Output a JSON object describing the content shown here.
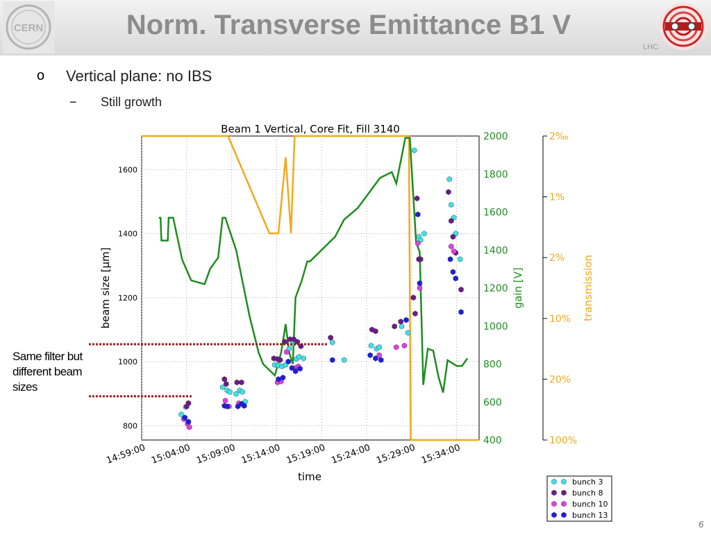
{
  "slide": {
    "title": "Norm. Transverse Emittance B1 V",
    "bullet1_marker": "o",
    "bullet1": "Vertical plane: no IBS",
    "bullet2_marker": "−",
    "bullet2": "Still growth",
    "annotation": "Same filter but different beam sizes",
    "page_number": "6",
    "lhc_label": "LHC",
    "cern_logo_text": "CERN"
  },
  "chart_data": {
    "type": "scatter",
    "title": "Beam 1 Vertical, Core Fit, Fill 3140",
    "xlabel": "time",
    "ylabel": "beam size [μm]",
    "ylim": [
      755,
      1705
    ],
    "y_ticks": [
      800,
      1000,
      1200,
      1400,
      1600
    ],
    "x_ticks": [
      {
        "label": "14:59:00",
        "t": 0
      },
      {
        "label": "15:04:00",
        "t": 5
      },
      {
        "label": "15:09:00",
        "t": 10
      },
      {
        "label": "15:14:00",
        "t": 15
      },
      {
        "label": "15:19:00",
        "t": 20
      },
      {
        "label": "15:24:00",
        "t": 25
      },
      {
        "label": "15:29:00",
        "t": 30
      },
      {
        "label": "15:34:00",
        "t": 35
      }
    ],
    "xlim_minutes": [
      0,
      37.5
    ],
    "gain_axis": {
      "label": "gain [V]",
      "ylim": [
        400,
        2000
      ],
      "ticks": [
        400,
        600,
        800,
        1000,
        1200,
        1400,
        1600,
        1800,
        2000
      ],
      "color": "#1e8c1e"
    },
    "transmission_axis": {
      "label": "transmission",
      "ticks": [
        "2‰",
        "1%",
        "2%",
        "10%",
        "20%",
        "100%"
      ],
      "color": "#f2a81d"
    },
    "gain_series": [
      [
        1.9,
        1570
      ],
      [
        2.1,
        1570
      ],
      [
        2.2,
        1450
      ],
      [
        2.9,
        1450
      ],
      [
        3.0,
        1570
      ],
      [
        3.5,
        1570
      ],
      [
        4.5,
        1350
      ],
      [
        5.5,
        1240
      ],
      [
        7.0,
        1220
      ],
      [
        7.6,
        1300
      ],
      [
        8.5,
        1360
      ],
      [
        9.0,
        1570
      ],
      [
        9.3,
        1570
      ],
      [
        10.5,
        1400
      ],
      [
        12,
        1050
      ],
      [
        13,
        860
      ],
      [
        13.5,
        800
      ],
      [
        14.8,
        740
      ],
      [
        15.5,
        860
      ],
      [
        16.0,
        1010
      ],
      [
        16.4,
        860
      ],
      [
        16.8,
        800
      ],
      [
        17.1,
        1150
      ],
      [
        17.8,
        1240
      ],
      [
        18.4,
        1340
      ],
      [
        18.7,
        1340
      ],
      [
        21.5,
        1470
      ],
      [
        22.5,
        1560
      ],
      [
        24.0,
        1620
      ],
      [
        26.5,
        1780
      ],
      [
        27.8,
        1810
      ],
      [
        28.3,
        1750
      ],
      [
        29.3,
        1990
      ],
      [
        29.8,
        1990
      ],
      [
        30.5,
        1440
      ],
      [
        30.9,
        1390
      ],
      [
        31.3,
        690
      ],
      [
        31.8,
        880
      ],
      [
        32.4,
        870
      ],
      [
        33,
        730
      ],
      [
        33.5,
        650
      ],
      [
        34.0,
        820
      ],
      [
        35.0,
        790
      ],
      [
        35.6,
        790
      ],
      [
        36.2,
        830
      ]
    ],
    "transmission_series": [
      [
        0,
        1
      ],
      [
        4.7,
        1
      ],
      [
        5.0,
        1
      ],
      [
        9.6,
        1
      ],
      [
        14.2,
        0.68
      ],
      [
        15.2,
        0.68
      ],
      [
        16.0,
        0.93
      ],
      [
        16.6,
        0.68
      ],
      [
        17.0,
        1
      ],
      [
        29.7,
        1
      ],
      [
        29.9,
        0
      ],
      [
        37.5,
        0
      ]
    ],
    "series": [
      {
        "name": "bunch 3",
        "color": "#40e0e8",
        "points": [
          [
            4.4,
            835
          ],
          [
            4.9,
            858
          ],
          [
            5.2,
            870
          ],
          [
            9.0,
            920
          ],
          [
            9.5,
            910
          ],
          [
            9.8,
            905
          ],
          [
            10.5,
            899
          ],
          [
            10.9,
            910
          ],
          [
            11.2,
            905
          ],
          [
            11.5,
            875
          ],
          [
            14.8,
            990
          ],
          [
            15.2,
            988
          ],
          [
            15.6,
            985
          ],
          [
            16.0,
            990
          ],
          [
            16.4,
            1040
          ],
          [
            16.8,
            1055
          ],
          [
            17.2,
            1008
          ],
          [
            17.5,
            1015
          ],
          [
            18.0,
            1010
          ],
          [
            21.2,
            1060
          ],
          [
            22.5,
            1005
          ],
          [
            25.5,
            1050
          ],
          [
            26.1,
            1040
          ],
          [
            26.4,
            1045
          ],
          [
            28.9,
            1110
          ],
          [
            29.6,
            1090
          ],
          [
            30.3,
            1660
          ],
          [
            30.8,
            1390
          ],
          [
            31.0,
            1380
          ],
          [
            31.4,
            1400
          ],
          [
            34.2,
            1570
          ],
          [
            34.4,
            1490
          ],
          [
            34.7,
            1450
          ],
          [
            34.9,
            1400
          ],
          [
            35.4,
            1320
          ]
        ]
      },
      {
        "name": "bunch 8",
        "color": "#6a1b8a",
        "points": [
          [
            5.0,
            860
          ],
          [
            5.2,
            870
          ],
          [
            9.2,
            945
          ],
          [
            9.4,
            930
          ],
          [
            10.6,
            935
          ],
          [
            11.1,
            935
          ],
          [
            14.7,
            1010
          ],
          [
            15.1,
            1008
          ],
          [
            15.4,
            1005
          ],
          [
            15.9,
            1062
          ],
          [
            16.5,
            1070
          ],
          [
            16.9,
            1070
          ],
          [
            17.3,
            1062
          ],
          [
            17.7,
            1048
          ],
          [
            21.0,
            1075
          ],
          [
            25.6,
            1100
          ],
          [
            26.0,
            1095
          ],
          [
            28.1,
            1110
          ],
          [
            28.8,
            1125
          ],
          [
            30.2,
            1200
          ],
          [
            30.4,
            1150
          ],
          [
            30.6,
            1510
          ],
          [
            30.8,
            1320
          ],
          [
            31.0,
            1320
          ],
          [
            34.1,
            1530
          ],
          [
            34.4,
            1440
          ],
          [
            34.6,
            1390
          ],
          [
            34.9,
            1340
          ],
          [
            35.5,
            1225
          ]
        ]
      },
      {
        "name": "bunch 10",
        "color": "#e040e0",
        "points": [
          [
            4.7,
            820
          ],
          [
            5.1,
            805
          ],
          [
            5.3,
            795
          ],
          [
            9.3,
            878
          ],
          [
            9.7,
            860
          ],
          [
            10.8,
            870
          ],
          [
            15.1,
            935
          ],
          [
            15.5,
            938
          ],
          [
            16.1,
            1030
          ],
          [
            17.0,
            980
          ],
          [
            17.4,
            985
          ],
          [
            26.4,
            1020
          ],
          [
            28.3,
            1045
          ],
          [
            29.2,
            1050
          ],
          [
            30.7,
            1370
          ],
          [
            30.9,
            1230
          ],
          [
            34.4,
            1360
          ],
          [
            34.7,
            1345
          ]
        ]
      },
      {
        "name": "bunch 13",
        "color": "#1e1ee0",
        "points": [
          [
            4.8,
            825
          ],
          [
            5.2,
            812
          ],
          [
            9.2,
            862
          ],
          [
            9.5,
            860
          ],
          [
            10.7,
            860
          ],
          [
            11.1,
            868
          ],
          [
            11.4,
            862
          ],
          [
            15.2,
            945
          ],
          [
            15.7,
            950
          ],
          [
            16.3,
            1000
          ],
          [
            16.7,
            980
          ],
          [
            17.1,
            970
          ],
          [
            17.6,
            978
          ],
          [
            21.2,
            1005
          ],
          [
            25.4,
            1020
          ],
          [
            26.0,
            1010
          ],
          [
            26.6,
            1005
          ],
          [
            29.4,
            1130
          ],
          [
            30.7,
            1460
          ],
          [
            30.9,
            1245
          ],
          [
            34.3,
            1320
          ],
          [
            34.6,
            1280
          ],
          [
            34.9,
            1260
          ],
          [
            35.5,
            1155
          ]
        ]
      }
    ],
    "legend_position": "bottom-right"
  }
}
